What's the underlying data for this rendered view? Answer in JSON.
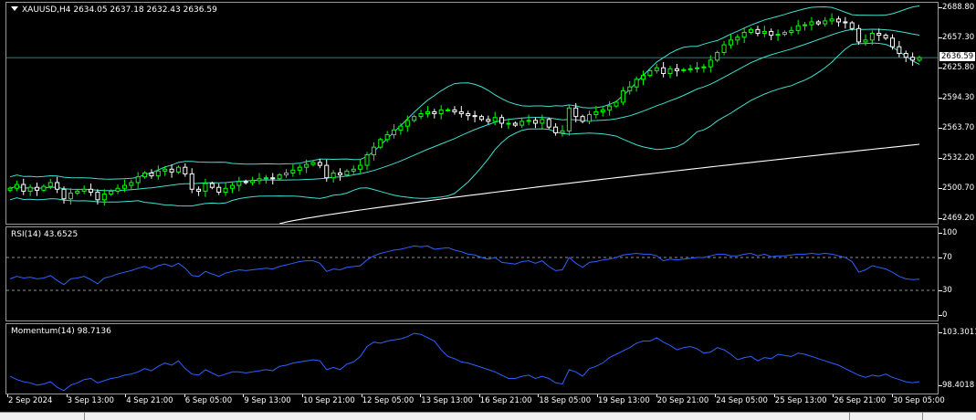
{
  "symbol_title": "XAUUSD,H4  2634.05 2637.18 2632.43 2636.59",
  "current_price_label": "2636.59",
  "rsi_title": "RSI(14) 43.6525",
  "momentum_title": "Momentum(14) 98.7136",
  "colors": {
    "background": "#000000",
    "bull": "#00ff00",
    "bear": "#ffffff",
    "band": "#40e0d0",
    "ma200": "#ffffff",
    "rsi": "#3060ff",
    "momentum": "#3060ff",
    "level": "#c0c0c0",
    "current_line": "#40e0d0"
  },
  "price_axis": [
    "2688.80",
    "2657.30",
    "2625.80",
    "2594.30",
    "2563.70",
    "2532.20",
    "2500.70",
    "2469.20"
  ],
  "rsi_axis": [
    "100",
    "70",
    "30",
    "0"
  ],
  "momentum_axis": [
    "103.3011",
    "98.4018"
  ],
  "time_axis": [
    "2 Sep 2024",
    "3 Sep 13:00",
    "4 Sep 21:00",
    "6 Sep 05:00",
    "9 Sep 13:00",
    "10 Sep 21:00",
    "12 Sep 05:00",
    "13 Sep 13:00",
    "16 Sep 21:00",
    "18 Sep 05:00",
    "19 Sep 13:00",
    "20 Sep 21:00",
    "24 Sep 05:00",
    "25 Sep 13:00",
    "26 Sep 21:00",
    "30 Sep 05:00"
  ],
  "chart_data": [
    {
      "type": "candlestick",
      "title": "XAUUSD,H4",
      "last": {
        "open": 2634.05,
        "high": 2637.18,
        "low": 2632.43,
        "close": 2636.59
      },
      "close": [
        2500,
        2504,
        2497,
        2501,
        2498,
        2502,
        2506,
        2499,
        2489,
        2495,
        2497,
        2499,
        2496,
        2488,
        2494,
        2497,
        2500,
        2503,
        2506,
        2512,
        2516,
        2513,
        2518,
        2520,
        2517,
        2522,
        2515,
        2499,
        2497,
        2505,
        2501,
        2496,
        2500,
        2503,
        2507,
        2506,
        2508,
        2510,
        2511,
        2510,
        2514,
        2516,
        2519,
        2522,
        2525,
        2527,
        2524,
        2511,
        2516,
        2514,
        2518,
        2520,
        2524,
        2535,
        2543,
        2551,
        2556,
        2561,
        2565,
        2571,
        2575,
        2578,
        2580,
        2578,
        2582,
        2582,
        2580,
        2578,
        2576,
        2575,
        2572,
        2570,
        2574,
        2568,
        2568,
        2566,
        2570,
        2571,
        2568,
        2572,
        2564,
        2558,
        2560,
        2584,
        2575,
        2570,
        2577,
        2580,
        2582,
        2586,
        2590,
        2602,
        2606,
        2614,
        2618,
        2623,
        2626,
        2620,
        2625,
        2623,
        2624,
        2625,
        2626,
        2627,
        2634,
        2642,
        2650,
        2655,
        2658,
        2663,
        2666,
        2662,
        2664,
        2660,
        2661,
        2663,
        2665,
        2670,
        2671,
        2674,
        2672,
        2675,
        2677,
        2674,
        2673,
        2667,
        2653,
        2655,
        2662,
        2660,
        2657,
        2648,
        2641,
        2637,
        2634,
        2636.59
      ],
      "bollinger": {
        "upper": 2688,
        "lower": 2543,
        "period": 20
      },
      "ma200_end": 2546
    },
    {
      "type": "line",
      "title": "RSI(14)",
      "levels": [
        70,
        30
      ],
      "ylim": [
        0,
        100
      ],
      "values": [
        44,
        47,
        45,
        46,
        44,
        45,
        48,
        42,
        37,
        44,
        45,
        47,
        43,
        38,
        45,
        47,
        50,
        52,
        54,
        57,
        59,
        56,
        60,
        62,
        59,
        63,
        57,
        48,
        47,
        53,
        50,
        47,
        51,
        53,
        55,
        54,
        55,
        56,
        57,
        56,
        59,
        61,
        63,
        65,
        66,
        66,
        63,
        53,
        56,
        55,
        58,
        59,
        60,
        67,
        72,
        75,
        77,
        79,
        80,
        82,
        84,
        83,
        84,
        80,
        81,
        82,
        79,
        77,
        74,
        73,
        70,
        68,
        70,
        64,
        63,
        62,
        65,
        66,
        63,
        66,
        59,
        54,
        55,
        70,
        63,
        58,
        64,
        65,
        67,
        68,
        70,
        73,
        74,
        75,
        74,
        74,
        72,
        66,
        68,
        67,
        68,
        69,
        70,
        70,
        72,
        74,
        74,
        72,
        72,
        74,
        75,
        72,
        74,
        71,
        72,
        72,
        73,
        74,
        74,
        75,
        74,
        75,
        74,
        72,
        70,
        65,
        52,
        55,
        60,
        58,
        56,
        52,
        47,
        44,
        43,
        43.65
      ]
    },
    {
      "type": "line",
      "title": "Momentum(14)",
      "ylim": [
        97.8,
        103.6
      ],
      "values": [
        99.2,
        98.9,
        98.7,
        98.6,
        98.4,
        98.5,
        98.7,
        98.2,
        97.9,
        98.4,
        98.6,
        98.9,
        99.0,
        98.6,
        98.8,
        99.0,
        99.1,
        99.3,
        99.4,
        99.6,
        99.9,
        99.7,
        100.1,
        100.4,
        100.2,
        100.6,
        99.9,
        99.4,
        99.3,
        99.8,
        99.5,
        99.2,
        99.4,
        99.6,
        99.6,
        99.5,
        99.6,
        99.7,
        99.8,
        99.7,
        100.1,
        100.2,
        100.4,
        100.5,
        100.6,
        100.7,
        100.6,
        99.8,
        100.0,
        99.8,
        100.3,
        100.5,
        101.0,
        101.9,
        102.3,
        102.2,
        102.4,
        102.5,
        102.6,
        102.8,
        103.1,
        103.0,
        102.7,
        102.4,
        101.6,
        101.0,
        100.8,
        100.5,
        100.4,
        100.2,
        100.0,
        99.8,
        99.6,
        99.3,
        99.0,
        99.0,
        99.2,
        99.3,
        99.0,
        99.2,
        99.0,
        98.6,
        98.5,
        99.8,
        99.6,
        99.2,
        99.9,
        100.1,
        100.4,
        100.9,
        101.2,
        101.5,
        101.8,
        102.2,
        102.4,
        102.4,
        102.7,
        102.3,
        102.0,
        101.6,
        101.8,
        101.9,
        101.7,
        101.3,
        101.4,
        101.8,
        101.6,
        101.2,
        100.7,
        100.9,
        101.0,
        100.6,
        100.9,
        100.8,
        101.2,
        101.1,
        101.0,
        101.3,
        101.2,
        101.0,
        100.8,
        100.6,
        100.4,
        100.2,
        99.9,
        99.6,
        99.3,
        99.1,
        99.3,
        99.2,
        99.4,
        99.1,
        98.9,
        98.7,
        98.6,
        98.71
      ]
    }
  ]
}
